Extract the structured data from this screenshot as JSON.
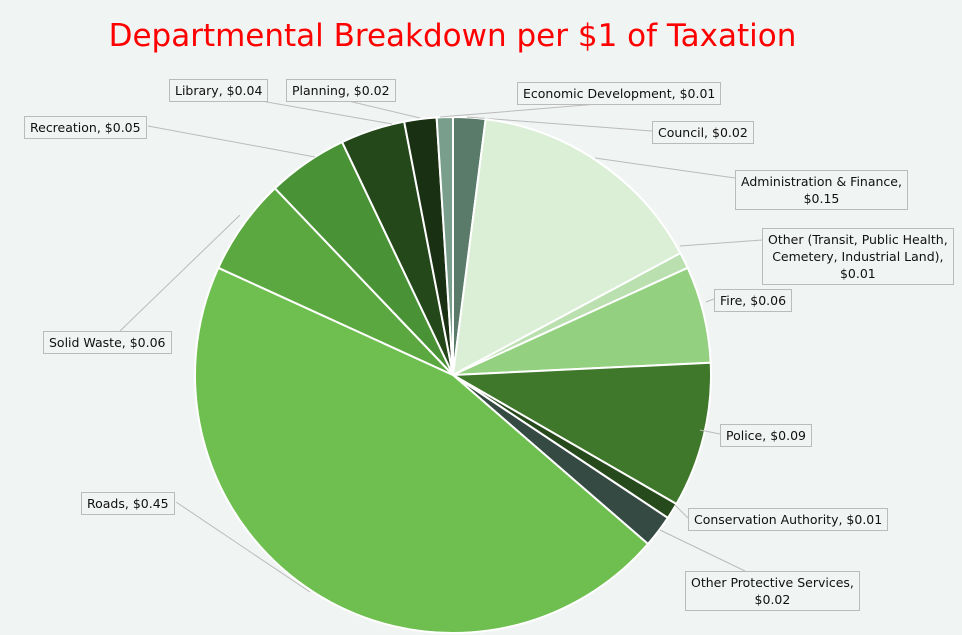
{
  "chart_data": {
    "type": "pie",
    "title": "Departmental Breakdown per $1 of Taxation",
    "start": "12 o'clock, clockwise",
    "slices": [
      {
        "label": "Council",
        "value": 0.02,
        "text": "Council,  $0.02",
        "color": "#5a7b6a"
      },
      {
        "label": "Administration & Finance",
        "value": 0.15,
        "text": "Administration & Finance,\n$0.15",
        "color": "#dbefd6"
      },
      {
        "label": "Other (Transit, Public Health, Cemetery, Industrial Land)",
        "value": 0.01,
        "text": "Other (Transit, Public Health,\nCemetery, Industrial Land),\n$0.01",
        "color": "#b9e0ae"
      },
      {
        "label": "Fire",
        "value": 0.06,
        "text": "Fire,  $0.06",
        "color": "#93d07f"
      },
      {
        "label": "Police",
        "value": 0.09,
        "text": "Police,  $0.09",
        "color": "#3f782b"
      },
      {
        "label": "Conservation Authority",
        "value": 0.01,
        "text": "Conservation Authority,  $0.01",
        "color": "#264a1c"
      },
      {
        "label": "Other Protective Services",
        "value": 0.02,
        "text": "Other Protective Services,\n$0.02",
        "color": "#354a42"
      },
      {
        "label": "Roads",
        "value": 0.45,
        "text": "Roads,  $0.45",
        "color": "#6ebf4f"
      },
      {
        "label": "Solid Waste",
        "value": 0.06,
        "text": "Solid Waste,  $0.06",
        "color": "#5aa83f"
      },
      {
        "label": "Recreation",
        "value": 0.05,
        "text": "Recreation,  $0.05",
        "color": "#4a9236"
      },
      {
        "label": "Library",
        "value": 0.04,
        "text": "Library,  $0.04",
        "color": "#24481a"
      },
      {
        "label": "Planning",
        "value": 0.02,
        "text": "Planning,  $0.02",
        "color": "#1a3012"
      },
      {
        "label": "Economic Development",
        "value": 0.01,
        "text": "Economic Development,  $0.01",
        "color": "#7a9e8c"
      }
    ]
  }
}
